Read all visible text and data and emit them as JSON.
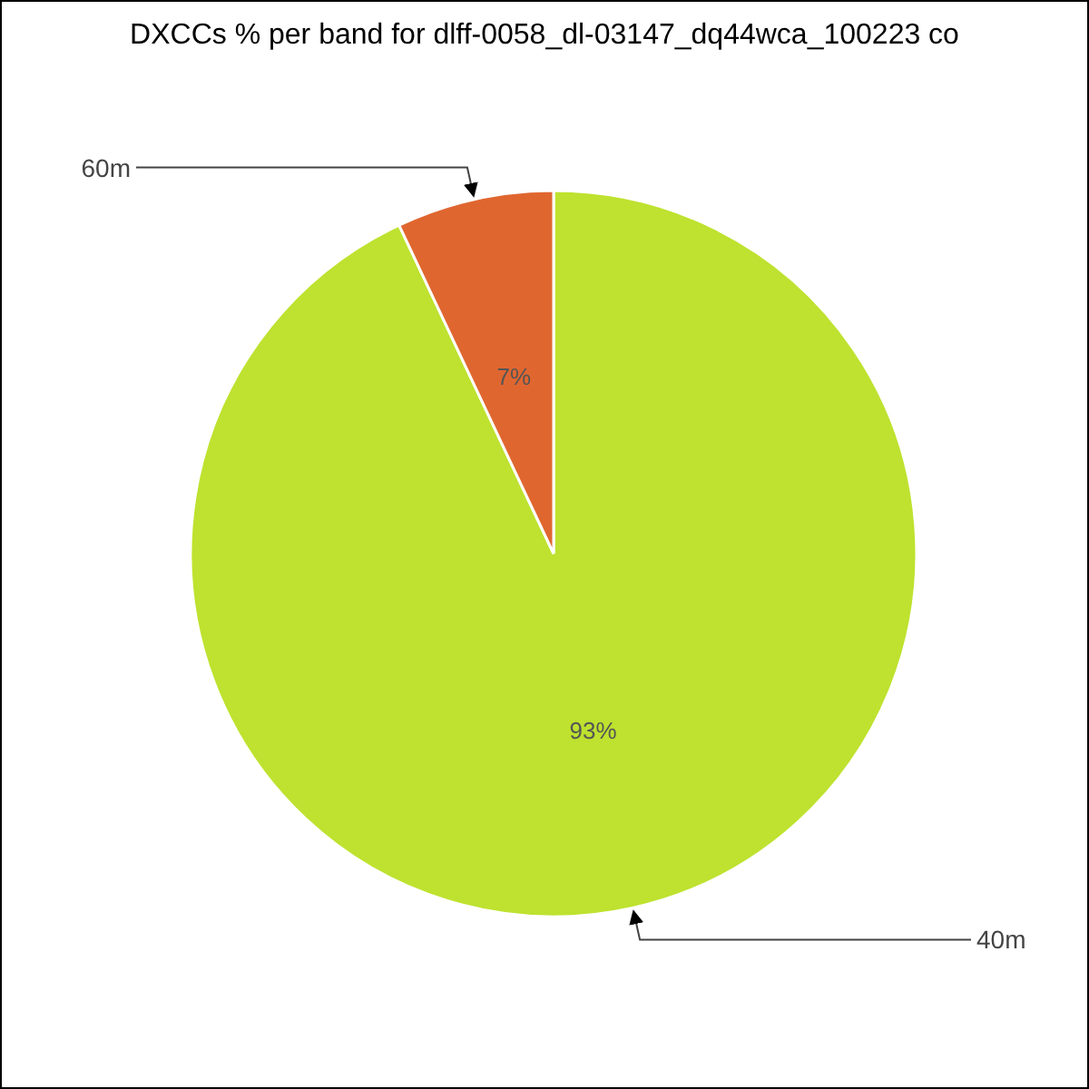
{
  "chart_data": {
    "type": "pie",
    "title": "DXCCs % per band for dlff-0058_dl-03147_dq44wca_100223 co",
    "categories": [
      "40m",
      "60m"
    ],
    "values": [
      93,
      7
    ],
    "colors": [
      "#bee22f",
      "#e06630"
    ],
    "value_labels": [
      "93%",
      "7%"
    ],
    "legend": false
  }
}
